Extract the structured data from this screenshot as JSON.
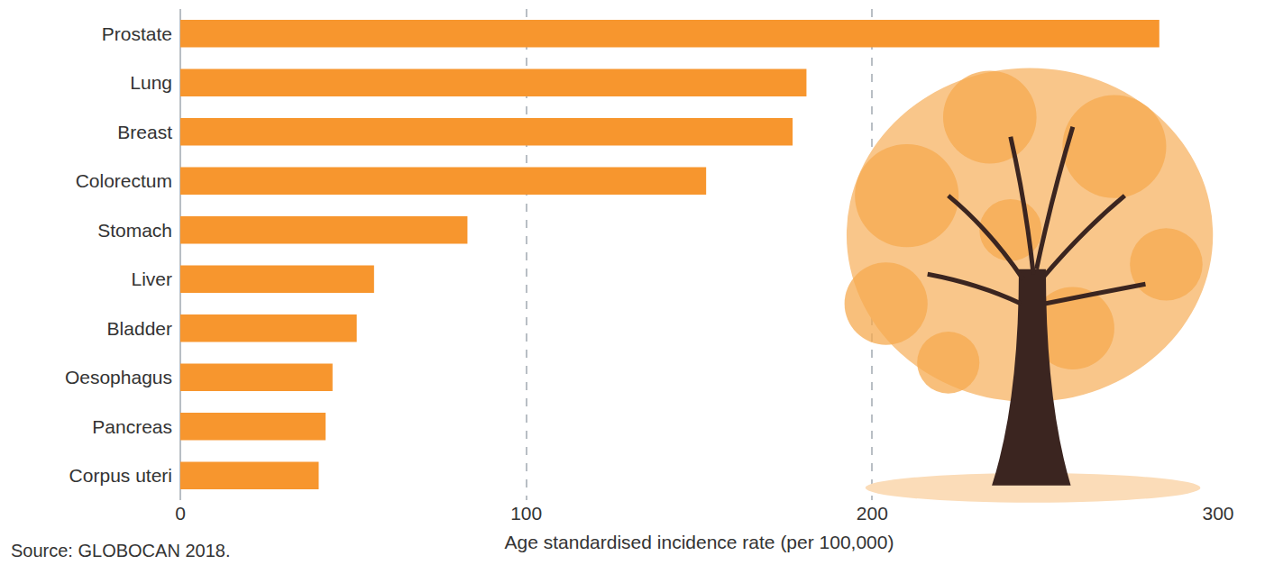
{
  "chart_data": {
    "type": "bar",
    "orientation": "horizontal",
    "categories": [
      "Prostate",
      "Lung",
      "Breast",
      "Colorectum",
      "Stomach",
      "Liver",
      "Bladder",
      "Oesophagus",
      "Pancreas",
      "Corpus uteri"
    ],
    "values": [
      283,
      181,
      177,
      152,
      83,
      56,
      51,
      44,
      42,
      40
    ],
    "color": "#f7962e",
    "xlabel": "Age standardised incidence rate (per 100,000)",
    "xlim": [
      0,
      300
    ],
    "xticks": [
      0,
      100,
      200,
      300
    ],
    "grid": true,
    "annotations": [
      "Source: GLOBOCAN 2018."
    ]
  }
}
